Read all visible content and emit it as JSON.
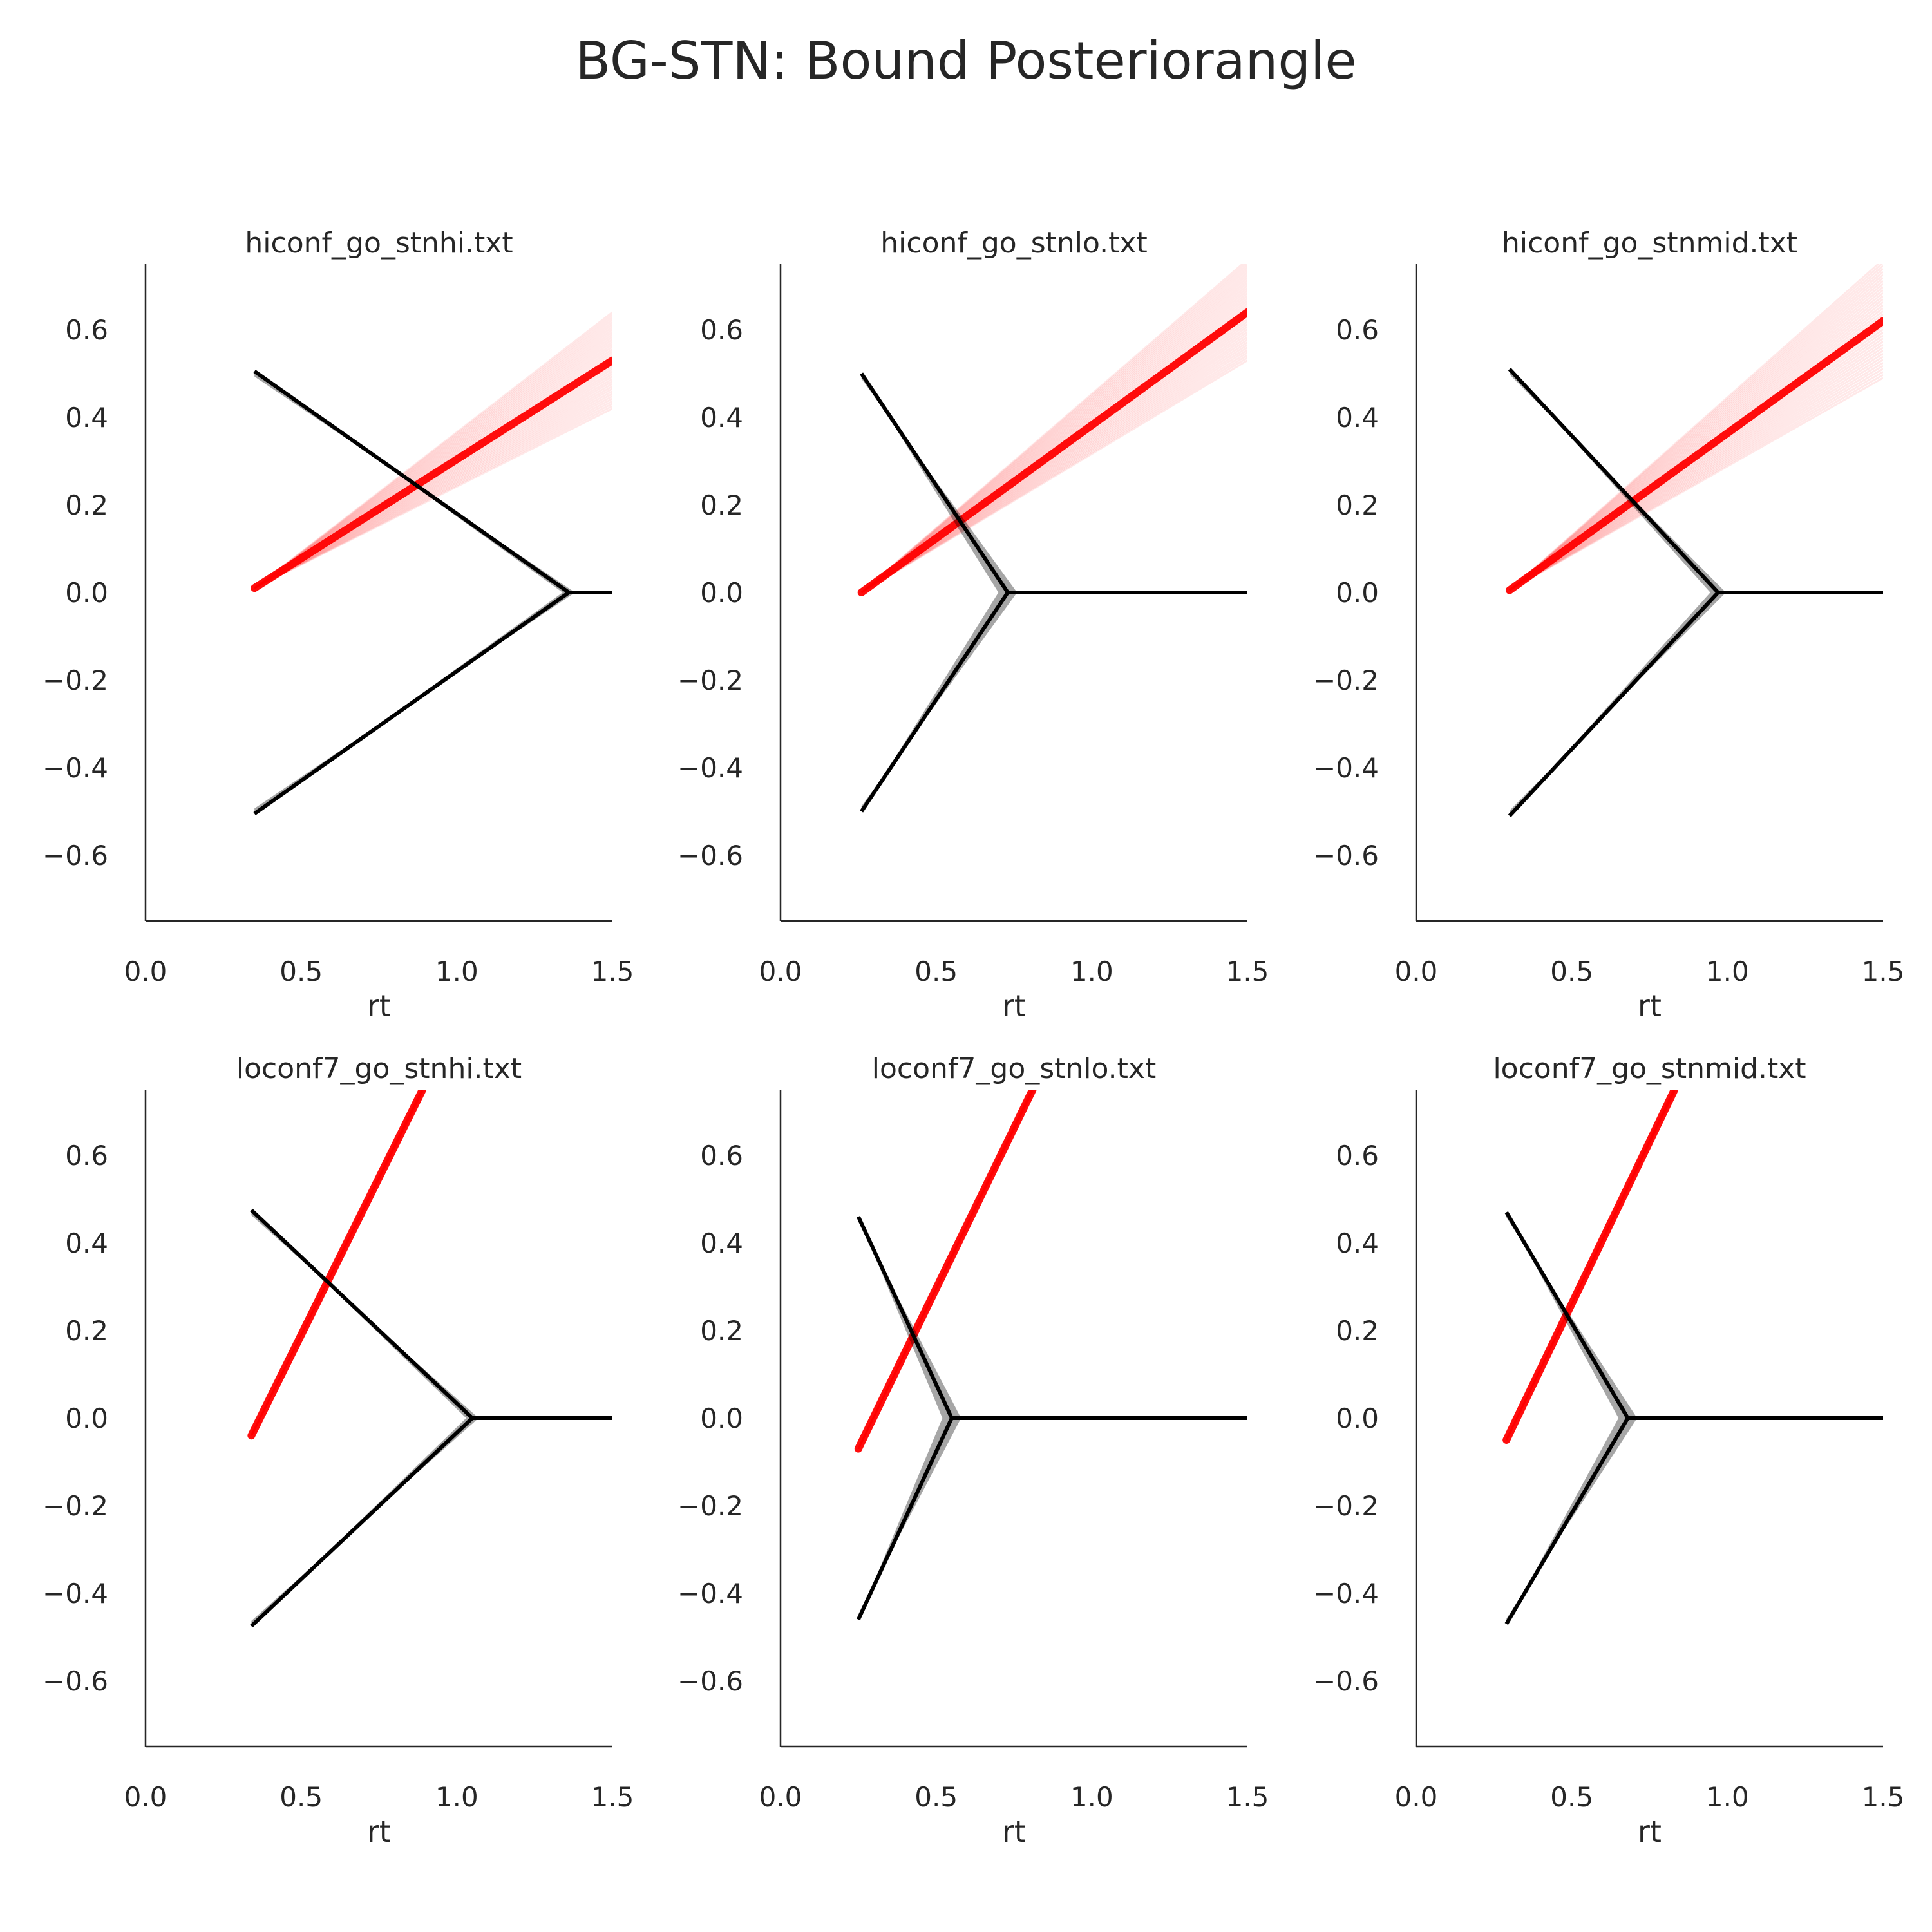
{
  "figure_title": "BG-STN: Bound Posteriorangle",
  "colors": {
    "bound": "#000000",
    "drift": "#ff0000",
    "axis": "#262626"
  },
  "chart_data": [
    {
      "type": "line",
      "title": "hiconf_go_stnhi.txt",
      "xlabel": "rt",
      "ylabel": "",
      "xlim": [
        0.0,
        1.5
      ],
      "ylim": [
        -0.75,
        0.75
      ],
      "xticks": [
        "0.0",
        "0.5",
        "1.0",
        "1.5"
      ],
      "yticks": [
        "0.6",
        "0.4",
        "0.2",
        "0.0",
        "−0.2",
        "−0.4",
        "−0.6"
      ],
      "series": [
        {
          "role": "bound",
          "color": "#000000",
          "x": [
            0.35,
            1.36,
            1.5
          ],
          "y_upper": [
            0.505,
            0.0,
            0.0
          ],
          "y_lower": [
            -0.505,
            0.0,
            0.0
          ],
          "spread": 0.02
        },
        {
          "role": "drift",
          "color": "#ff0000",
          "x": [
            0.35,
            1.5
          ],
          "y": [
            0.01,
            0.53
          ],
          "y_end_range": [
            0.42,
            0.64
          ]
        }
      ]
    },
    {
      "type": "line",
      "title": "hiconf_go_stnlo.txt",
      "xlabel": "rt",
      "ylabel": "",
      "xlim": [
        0.0,
        1.5
      ],
      "ylim": [
        -0.75,
        0.75
      ],
      "xticks": [
        "0.0",
        "0.5",
        "1.0",
        "1.5"
      ],
      "yticks": [
        "0.6",
        "0.4",
        "0.2",
        "0.0",
        "−0.2",
        "−0.4",
        "−0.6"
      ],
      "series": [
        {
          "role": "bound",
          "color": "#000000",
          "x": [
            0.26,
            0.73,
            1.5
          ],
          "y_upper": [
            0.5,
            0.0,
            0.0
          ],
          "y_lower": [
            -0.5,
            0.0,
            0.0
          ],
          "spread": 0.03
        },
        {
          "role": "drift",
          "color": "#ff0000",
          "x": [
            0.26,
            1.5
          ],
          "y": [
            0.0,
            0.64
          ],
          "y_end_range": [
            0.53,
            0.76
          ]
        }
      ]
    },
    {
      "type": "line",
      "title": "hiconf_go_stnmid.txt",
      "xlabel": "rt",
      "ylabel": "",
      "xlim": [
        0.0,
        1.5
      ],
      "ylim": [
        -0.75,
        0.75
      ],
      "xticks": [
        "0.0",
        "0.5",
        "1.0",
        "1.5"
      ],
      "yticks": [
        "0.6",
        "0.4",
        "0.2",
        "0.0",
        "−0.2",
        "−0.4",
        "−0.6"
      ],
      "series": [
        {
          "role": "bound",
          "color": "#000000",
          "x": [
            0.3,
            0.97,
            1.5
          ],
          "y_upper": [
            0.51,
            0.0,
            0.0
          ],
          "y_lower": [
            -0.51,
            0.0,
            0.0
          ],
          "spread": 0.025
        },
        {
          "role": "drift",
          "color": "#ff0000",
          "x": [
            0.3,
            1.5
          ],
          "y": [
            0.005,
            0.62
          ],
          "y_end_range": [
            0.49,
            0.76
          ]
        }
      ]
    },
    {
      "type": "line",
      "title": "loconf7_go_stnhi.txt",
      "xlabel": "rt",
      "ylabel": "",
      "xlim": [
        0.0,
        1.5
      ],
      "ylim": [
        -0.75,
        0.75
      ],
      "xticks": [
        "0.0",
        "0.5",
        "1.0",
        "1.5"
      ],
      "yticks": [
        "0.6",
        "0.4",
        "0.2",
        "0.0",
        "−0.2",
        "−0.4",
        "−0.6"
      ],
      "series": [
        {
          "role": "bound",
          "color": "#000000",
          "x": [
            0.34,
            1.05,
            1.5
          ],
          "y_upper": [
            0.475,
            0.0,
            0.0
          ],
          "y_lower": [
            -0.475,
            0.0,
            0.0
          ],
          "spread": 0.02
        },
        {
          "role": "drift",
          "color": "#ff0000",
          "x": [
            0.34,
            0.89
          ],
          "y": [
            -0.04,
            0.75
          ],
          "y_end_range": [
            0.745,
            0.755
          ]
        }
      ]
    },
    {
      "type": "line",
      "title": "loconf7_go_stnlo.txt",
      "xlabel": "rt",
      "ylabel": "",
      "xlim": [
        0.0,
        1.5
      ],
      "ylim": [
        -0.75,
        0.75
      ],
      "xticks": [
        "0.0",
        "0.5",
        "1.0",
        "1.5"
      ],
      "yticks": [
        "0.6",
        "0.4",
        "0.2",
        "0.0",
        "−0.2",
        "−0.4",
        "−0.6"
      ],
      "series": [
        {
          "role": "bound",
          "color": "#000000",
          "x": [
            0.25,
            0.55,
            1.5
          ],
          "y_upper": [
            0.46,
            0.0,
            0.0
          ],
          "y_lower": [
            -0.46,
            0.0,
            0.0
          ],
          "spread": 0.03
        },
        {
          "role": "drift",
          "color": "#ff0000",
          "x": [
            0.25,
            0.81
          ],
          "y": [
            -0.07,
            0.75
          ],
          "y_end_range": [
            0.745,
            0.755
          ]
        }
      ]
    },
    {
      "type": "line",
      "title": "loconf7_go_stnmid.txt",
      "xlabel": "rt",
      "ylabel": "",
      "xlim": [
        0.0,
        1.5
      ],
      "ylim": [
        -0.75,
        0.75
      ],
      "xticks": [
        "0.0",
        "0.5",
        "1.0",
        "1.5"
      ],
      "yticks": [
        "0.6",
        "0.4",
        "0.2",
        "0.0",
        "−0.2",
        "−0.4",
        "−0.6"
      ],
      "series": [
        {
          "role": "bound",
          "color": "#000000",
          "x": [
            0.29,
            0.68,
            1.5
          ],
          "y_upper": [
            0.47,
            0.0,
            0.0
          ],
          "y_lower": [
            -0.47,
            0.0,
            0.0
          ],
          "spread": 0.03
        },
        {
          "role": "drift",
          "color": "#ff0000",
          "x": [
            0.29,
            0.83
          ],
          "y": [
            -0.05,
            0.75
          ],
          "y_end_range": [
            0.745,
            0.755
          ]
        }
      ]
    }
  ]
}
